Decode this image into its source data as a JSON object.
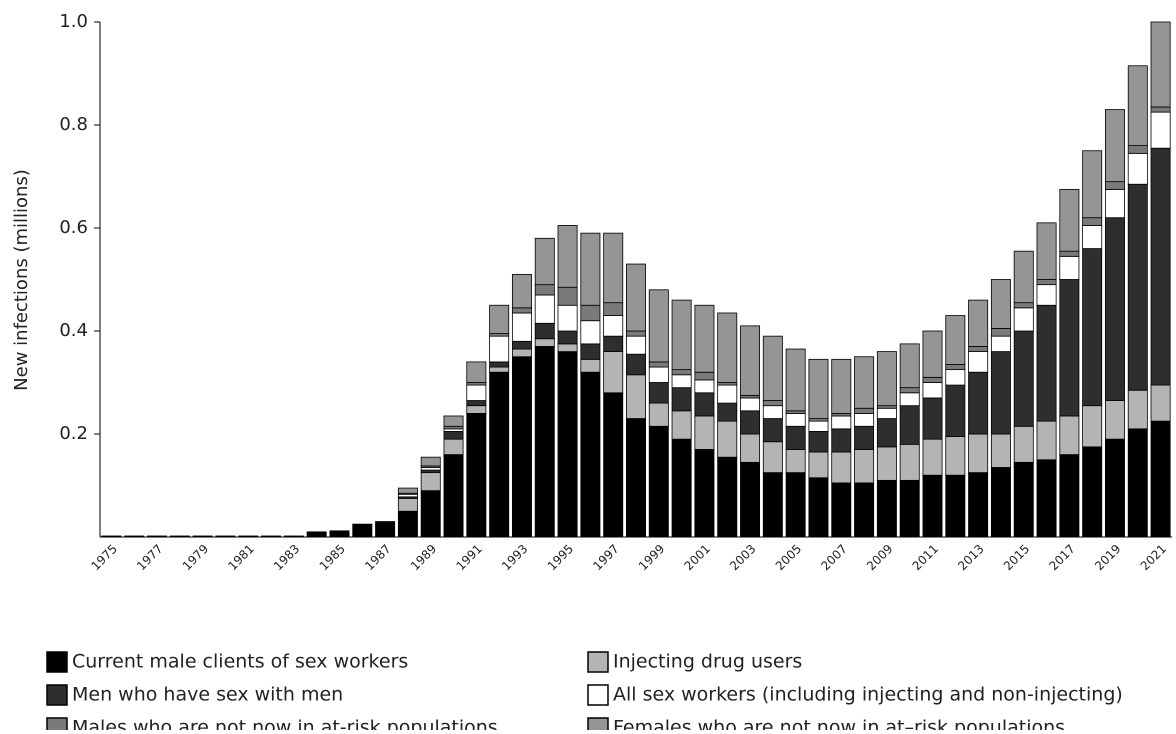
{
  "chart_data": {
    "type": "stacked-bar",
    "y_label": "New infections (millions)",
    "categories": [
      "1975",
      null,
      "1977",
      null,
      "1979",
      null,
      "1981",
      null,
      "1983",
      null,
      "1985",
      null,
      "1987",
      null,
      "1989",
      null,
      "1991",
      null,
      "1993",
      null,
      "1995",
      null,
      "1997",
      null,
      "1999",
      null,
      "2001",
      null,
      "2003",
      null,
      "2005",
      null,
      "2007",
      null,
      "2009",
      null,
      "2011",
      null,
      "2013",
      null,
      "2015",
      null,
      "2017",
      null,
      "2019",
      null,
      "2021"
    ],
    "series": [
      {
        "name": "Current male clients of sex workers",
        "color": "#000000",
        "values": [
          0.002,
          0.002,
          0.002,
          0.002,
          0.002,
          0.002,
          0.002,
          0.002,
          0.002,
          0.01,
          0.012,
          0.025,
          0.03,
          0.05,
          0.09,
          0.16,
          0.24,
          0.32,
          0.35,
          0.37,
          0.36,
          0.32,
          0.28,
          0.23,
          0.215,
          0.19,
          0.17,
          0.155,
          0.145,
          0.125,
          0.125,
          0.115,
          0.105,
          0.105,
          0.11,
          0.11,
          0.12,
          0.12,
          0.125,
          0.135,
          0.145,
          0.15,
          0.16,
          0.175,
          0.19,
          0.21,
          0.225
        ]
      },
      {
        "name": "Injecting drug users",
        "color": "#b4b4b4",
        "values": [
          0,
          0,
          0,
          0,
          0,
          0,
          0,
          0,
          0,
          0,
          0,
          0,
          0,
          0.025,
          0.035,
          0.03,
          0.015,
          0.01,
          0.015,
          0.015,
          0.015,
          0.025,
          0.08,
          0.085,
          0.045,
          0.055,
          0.065,
          0.07,
          0.055,
          0.06,
          0.045,
          0.05,
          0.06,
          0.065,
          0.065,
          0.07,
          0.07,
          0.075,
          0.075,
          0.065,
          0.07,
          0.075,
          0.075,
          0.08,
          0.075,
          0.075,
          0.07
        ]
      },
      {
        "name": "Men who have sex with men",
        "color": "#2e2e2e",
        "values": [
          0,
          0,
          0,
          0,
          0,
          0,
          0,
          0,
          0,
          0,
          0,
          0,
          0,
          0.003,
          0.005,
          0.015,
          0.01,
          0.01,
          0.015,
          0.03,
          0.025,
          0.03,
          0.03,
          0.04,
          0.04,
          0.045,
          0.045,
          0.035,
          0.045,
          0.045,
          0.045,
          0.04,
          0.045,
          0.045,
          0.055,
          0.075,
          0.08,
          0.1,
          0.12,
          0.16,
          0.185,
          0.225,
          0.265,
          0.305,
          0.355,
          0.4,
          0.46
        ]
      },
      {
        "name": "All sex workers (including injecting and non-injecting)",
        "color": "#ffffff",
        "values": [
          0,
          0,
          0,
          0,
          0,
          0,
          0,
          0,
          0,
          0,
          0,
          0,
          0,
          0.005,
          0.005,
          0.005,
          0.03,
          0.05,
          0.055,
          0.055,
          0.05,
          0.045,
          0.04,
          0.035,
          0.03,
          0.025,
          0.025,
          0.035,
          0.025,
          0.025,
          0.025,
          0.02,
          0.025,
          0.025,
          0.02,
          0.025,
          0.03,
          0.03,
          0.04,
          0.03,
          0.045,
          0.04,
          0.045,
          0.045,
          0.055,
          0.06,
          0.07
        ]
      },
      {
        "name": "Males who are not now in at-risk populations",
        "color": "#7a7a7a",
        "values": [
          0,
          0,
          0,
          0,
          0,
          0,
          0,
          0,
          0,
          0,
          0,
          0,
          0,
          0.002,
          0.003,
          0.005,
          0.005,
          0.005,
          0.01,
          0.02,
          0.035,
          0.03,
          0.025,
          0.01,
          0.01,
          0.01,
          0.015,
          0.005,
          0.005,
          0.01,
          0.005,
          0.005,
          0.005,
          0.01,
          0.005,
          0.01,
          0.01,
          0.01,
          0.01,
          0.015,
          0.01,
          0.01,
          0.01,
          0.015,
          0.015,
          0.015,
          0.01
        ]
      },
      {
        "name": "Females who are not now in at–risk populations",
        "color": "#959595",
        "values": [
          0,
          0,
          0,
          0,
          0,
          0,
          0,
          0,
          0,
          0,
          0,
          0,
          0,
          0.01,
          0.017,
          0.02,
          0.04,
          0.055,
          0.065,
          0.09,
          0.12,
          0.14,
          0.135,
          0.13,
          0.14,
          0.135,
          0.13,
          0.135,
          0.135,
          0.125,
          0.12,
          0.115,
          0.105,
          0.1,
          0.105,
          0.085,
          0.09,
          0.095,
          0.09,
          0.095,
          0.1,
          0.11,
          0.12,
          0.13,
          0.14,
          0.155,
          0.165
        ]
      }
    ],
    "ylim": [
      0,
      1.0
    ],
    "yticks": [
      0.2,
      0.4,
      0.6,
      0.8,
      {
        "value": 1,
        "label": "1.0"
      }
    ]
  }
}
